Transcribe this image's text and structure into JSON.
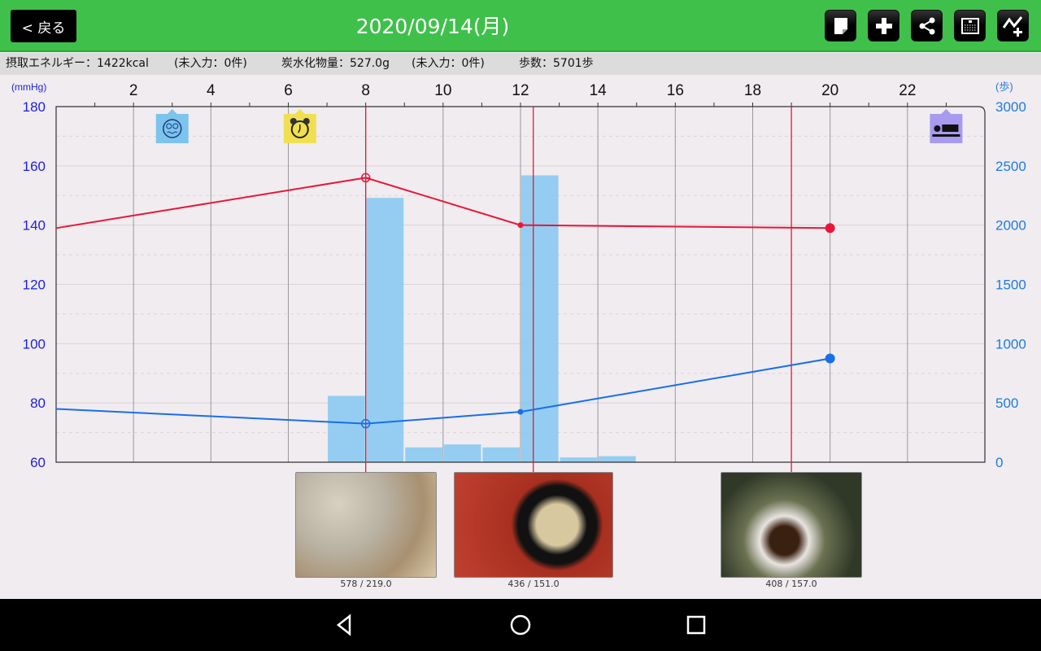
{
  "header": {
    "back_label": "< 戻る",
    "title": "2020/09/14(月)",
    "toolbar": [
      {
        "name": "memo-icon"
      },
      {
        "name": "add-icon"
      },
      {
        "name": "share-icon"
      },
      {
        "name": "calendar-icon"
      },
      {
        "name": "add-graph-icon"
      }
    ]
  },
  "summary": {
    "energy": "摂取エネルギー：1422kcal",
    "energy_missing": "(未入力：0件)",
    "carbs": "炭水化物量：527.0g",
    "carbs_missing": "(未入力：0件)",
    "steps": "歩数：5701歩"
  },
  "chart_data": {
    "type": "line+bar",
    "left_axis": {
      "unit": "(mmHg)",
      "range": [
        60,
        180
      ],
      "ticks": [
        "60",
        "80",
        "100",
        "120",
        "140",
        "160",
        "180"
      ]
    },
    "right_axis": {
      "unit": "(歩)",
      "range": [
        0,
        3000
      ],
      "ticks": [
        "0",
        "500",
        "1000",
        "1500",
        "2000",
        "2500",
        "3000"
      ]
    },
    "x_axis": {
      "range": [
        0,
        24
      ],
      "ticks": [
        "2",
        "4",
        "6",
        "8",
        "10",
        "12",
        "14",
        "16",
        "18",
        "20",
        "22"
      ]
    },
    "grid": true,
    "colors": {
      "systolic": "#e8173a",
      "diastolic": "#1a6ee8",
      "steps": "#8ecbf0",
      "meal_line": "#e8173a",
      "left_axis_text": "#2020e0",
      "right_axis_text": "#1e7be0"
    },
    "steps": [
      {
        "hour": 7,
        "value": 560
      },
      {
        "hour": 8,
        "value": 2230
      },
      {
        "hour": 9,
        "value": 125
      },
      {
        "hour": 10,
        "value": 150
      },
      {
        "hour": 11,
        "value": 125
      },
      {
        "hour": 12,
        "value": 2420
      },
      {
        "hour": 13,
        "value": 40
      },
      {
        "hour": 14,
        "value": 51
      }
    ],
    "systolic": [
      {
        "x": 0,
        "y": 139
      },
      {
        "x": 8,
        "y": 156,
        "marker": "target"
      },
      {
        "x": 12,
        "y": 140,
        "marker": "small"
      },
      {
        "x": 20,
        "y": 139,
        "marker": "dot"
      }
    ],
    "diastolic": [
      {
        "x": 0,
        "y": 78
      },
      {
        "x": 8,
        "y": 73,
        "marker": "target"
      },
      {
        "x": 12,
        "y": 77,
        "marker": "small"
      },
      {
        "x": 20,
        "y": 95,
        "marker": "dot"
      }
    ],
    "meal_times": [
      8,
      12.33,
      19
    ],
    "events": [
      {
        "hour": 3,
        "icon": "sick-face-icon",
        "color": "#7cc4ec"
      },
      {
        "hour": 6.3,
        "icon": "alarm-clock-icon",
        "color": "#f0e050"
      },
      {
        "hour": 23,
        "icon": "sleep-icon",
        "color": "#a79af0"
      }
    ]
  },
  "meals": [
    {
      "label": "578 / 219.0"
    },
    {
      "label": "436 / 151.0"
    },
    {
      "label": "408 / 157.0"
    }
  ],
  "nav": {
    "back": "back-icon",
    "home": "home-icon",
    "recent": "recent-apps-icon"
  }
}
